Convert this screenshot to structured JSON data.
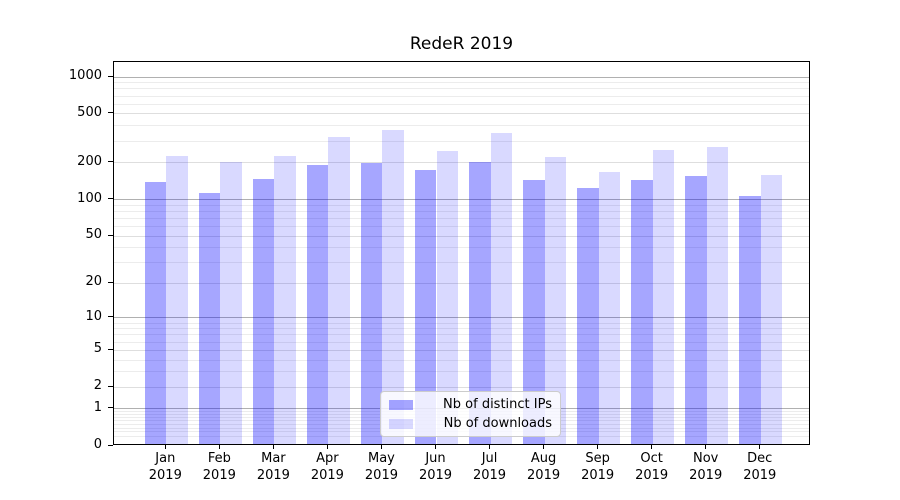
{
  "chart_data": {
    "type": "bar",
    "title": "RedeR 2019",
    "year_label": "2019",
    "categories": [
      "Jan",
      "Feb",
      "Mar",
      "Apr",
      "May",
      "Jun",
      "Jul",
      "Aug",
      "Sep",
      "Oct",
      "Nov",
      "Dec"
    ],
    "series": [
      {
        "name": "Nb of distinct IPs",
        "color": "rgba(0,0,255,0.35)",
        "values": [
          135,
          109,
          141,
          184,
          193,
          169,
          196,
          140,
          119,
          139,
          150,
          102
        ]
      },
      {
        "name": "Nb of downloads",
        "color": "rgba(0,0,255,0.15)",
        "values": [
          219,
          196,
          217,
          310,
          354,
          240,
          338,
          214,
          162,
          246,
          260,
          154
        ]
      }
    ],
    "y_axis": {
      "scale": "log1p",
      "tick_labels": [
        0,
        1,
        2,
        5,
        10,
        20,
        50,
        100,
        200,
        500,
        1000
      ],
      "max": 1325
    },
    "x_axis": {
      "format": "month over year, two lines"
    },
    "legend": {
      "position": "lower-center"
    },
    "grid": {
      "on": true,
      "major_color": "#b0b0b0",
      "mid_color": "#dedede",
      "minor_color": "#ececec"
    },
    "colors": {
      "bar_base": "#0000ff",
      "axis": "#000000",
      "background": "#ffffff"
    }
  }
}
